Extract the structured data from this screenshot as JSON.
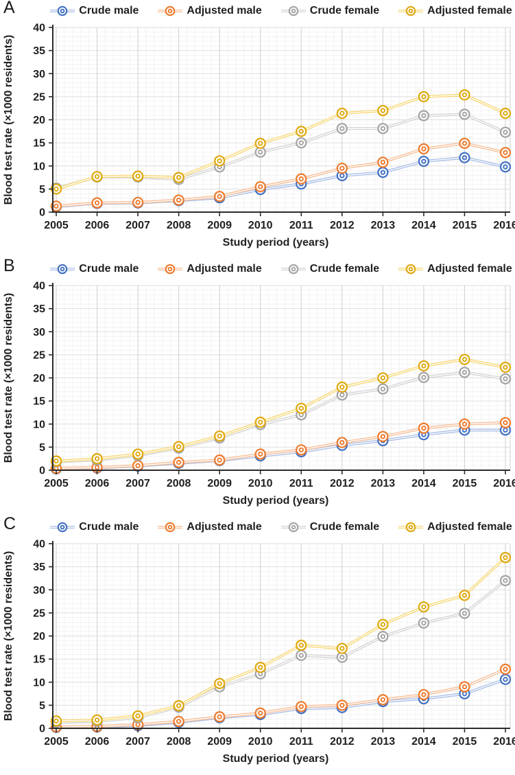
{
  "figure": {
    "panel_letters": [
      "A",
      "B",
      "C"
    ]
  },
  "legend": {
    "position": "top",
    "items": [
      "Crude male",
      "Adjusted male",
      "Crude female",
      "Adjusted female"
    ]
  },
  "colors": {
    "crude_male": "#4472C4",
    "crude_male_line": "#A9BFE6",
    "adjusted_male": "#ED7D31",
    "adjusted_male_line": "#F6BE98",
    "crude_female": "#A5A5A5",
    "crude_female_line": "#D4D4D4",
    "adjusted_female": "#E0A912",
    "adjusted_female_line": "#F6D878",
    "axis": "#2B2B2B",
    "grid_major_h": "#DEDEDE",
    "grid_major_v": "#CFCFCF",
    "grid_minor": "#F2F2F2"
  },
  "chart_data": [
    {
      "panel": "A",
      "type": "line",
      "xlabel": "Study period (years)",
      "ylabel": "Blood test rate (×1000 residents)",
      "ylim": [
        0,
        40
      ],
      "yticks": [
        0,
        5,
        10,
        15,
        20,
        25,
        30,
        35,
        40
      ],
      "grid": true,
      "legend_position": "top",
      "x": [
        2005,
        2006,
        2007,
        2008,
        2009,
        2010,
        2011,
        2012,
        2013,
        2014,
        2015,
        2016
      ],
      "series": [
        {
          "name": "Crude male",
          "color_key": "crude_male",
          "values": [
            1.2,
            1.9,
            2.0,
            2.5,
            3.1,
            4.9,
            6.1,
            7.9,
            8.6,
            11.0,
            11.8,
            9.8
          ]
        },
        {
          "name": "Adjusted male",
          "color_key": "adjusted_male",
          "values": [
            1.3,
            2.0,
            2.1,
            2.6,
            3.4,
            5.5,
            7.2,
            9.5,
            10.8,
            13.7,
            14.9,
            12.9
          ]
        },
        {
          "name": "Crude female",
          "color_key": "crude_female",
          "values": [
            5.2,
            7.6,
            7.6,
            7.1,
            9.8,
            13.0,
            15.0,
            18.1,
            18.1,
            20.9,
            21.2,
            17.3
          ]
        },
        {
          "name": "Adjusted female",
          "color_key": "adjusted_female",
          "values": [
            5.0,
            7.7,
            7.8,
            7.5,
            11.1,
            14.9,
            17.5,
            21.4,
            22.0,
            25.0,
            25.4,
            21.4
          ]
        }
      ]
    },
    {
      "panel": "B",
      "type": "line",
      "xlabel": "Study period (years)",
      "ylabel": "Blood test rate (×1000 residents)",
      "ylim": [
        0,
        40
      ],
      "yticks": [
        0,
        5,
        10,
        15,
        20,
        25,
        30,
        35,
        40
      ],
      "grid": true,
      "legend_position": "top",
      "x": [
        2005,
        2006,
        2007,
        2008,
        2009,
        2010,
        2011,
        2012,
        2013,
        2014,
        2015,
        2016
      ],
      "series": [
        {
          "name": "Crude male",
          "color_key": "crude_male",
          "values": [
            0.3,
            0.5,
            0.9,
            1.5,
            2.1,
            3.1,
            4.0,
            5.4,
            6.4,
            7.7,
            8.7,
            8.7
          ]
        },
        {
          "name": "Adjusted male",
          "color_key": "adjusted_male",
          "values": [
            0.4,
            0.6,
            1.0,
            1.7,
            2.2,
            3.5,
            4.4,
            6.0,
            7.3,
            9.1,
            10.0,
            10.3
          ]
        },
        {
          "name": "Crude female",
          "color_key": "crude_female",
          "values": [
            1.8,
            2.2,
            3.2,
            4.8,
            7.0,
            9.9,
            12.0,
            16.3,
            17.6,
            20.1,
            21.2,
            19.8
          ]
        },
        {
          "name": "Adjusted female",
          "color_key": "adjusted_female",
          "values": [
            2.0,
            2.5,
            3.5,
            5.1,
            7.4,
            10.4,
            13.4,
            18.0,
            20.0,
            22.6,
            24.0,
            22.3
          ]
        }
      ]
    },
    {
      "panel": "C",
      "type": "line",
      "xlabel": "Study period (years)",
      "ylabel": "Blood test rate (×1000 residents)",
      "ylim": [
        0,
        40
      ],
      "yticks": [
        0,
        5,
        10,
        15,
        20,
        25,
        30,
        35,
        40
      ],
      "grid": true,
      "legend_position": "top",
      "x": [
        2005,
        2006,
        2007,
        2008,
        2009,
        2010,
        2011,
        2012,
        2013,
        2014,
        2015,
        2016
      ],
      "series": [
        {
          "name": "Crude male",
          "color_key": "crude_male",
          "values": [
            0.2,
            0.3,
            0.6,
            1.3,
            2.3,
            3.0,
            4.3,
            4.5,
            5.8,
            6.4,
            7.5,
            10.6
          ]
        },
        {
          "name": "Adjusted male",
          "color_key": "adjusted_male",
          "values": [
            0.3,
            0.4,
            0.8,
            1.5,
            2.5,
            3.3,
            4.7,
            5.0,
            6.2,
            7.3,
            9.0,
            12.8
          ]
        },
        {
          "name": "Crude female",
          "color_key": "crude_female",
          "values": [
            1.3,
            1.5,
            2.3,
            4.6,
            9.0,
            11.8,
            15.8,
            15.4,
            19.9,
            22.8,
            24.9,
            32.0
          ]
        },
        {
          "name": "Adjusted female",
          "color_key": "adjusted_female",
          "values": [
            1.6,
            1.8,
            2.7,
            4.9,
            9.7,
            13.2,
            18.0,
            17.3,
            22.5,
            26.3,
            28.8,
            37.0
          ]
        }
      ]
    }
  ]
}
